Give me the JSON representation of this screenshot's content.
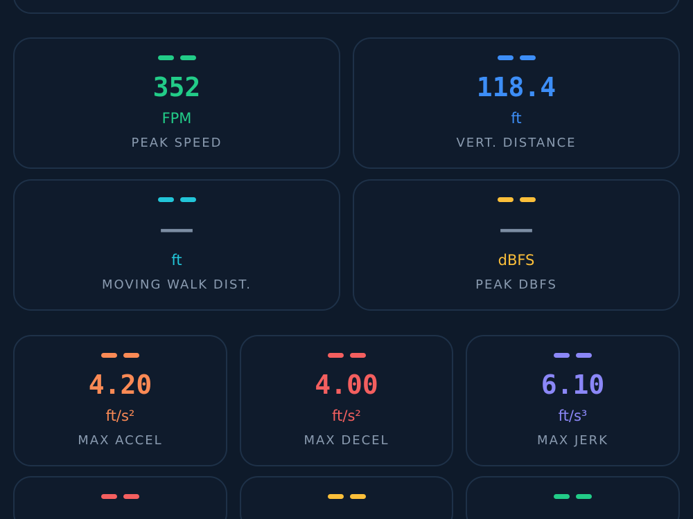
{
  "metrics": [
    {
      "value": "352",
      "unit": "FPM",
      "label": "PEAK SPEED",
      "color": "#22cc88"
    },
    {
      "value": "118.4",
      "unit": "ft",
      "label": "VERT. DISTANCE",
      "color": "#3d8ef7"
    },
    {
      "value": "——",
      "unit": "ft",
      "label": "MOVING WALK DIST.",
      "color": "#22c5d8"
    },
    {
      "value": "——",
      "unit": "dBFS",
      "label": "PEAK DBFS",
      "color": "#fbbf3a"
    },
    {
      "value": "4.20",
      "unit": "ft/s²",
      "label": "MAX ACCEL",
      "color": "#fb8a55"
    },
    {
      "value": "4.00",
      "unit": "ft/s²",
      "label": "MAX DECEL",
      "color": "#f45f5f"
    },
    {
      "value": "6.10",
      "unit": "ft/s³",
      "label": "MAX JERK",
      "color": "#8b87f7"
    }
  ],
  "partial_cards": [
    {
      "color": "#f45f5f"
    },
    {
      "color": "#fbbf3a"
    },
    {
      "color": "#22cc88"
    }
  ]
}
